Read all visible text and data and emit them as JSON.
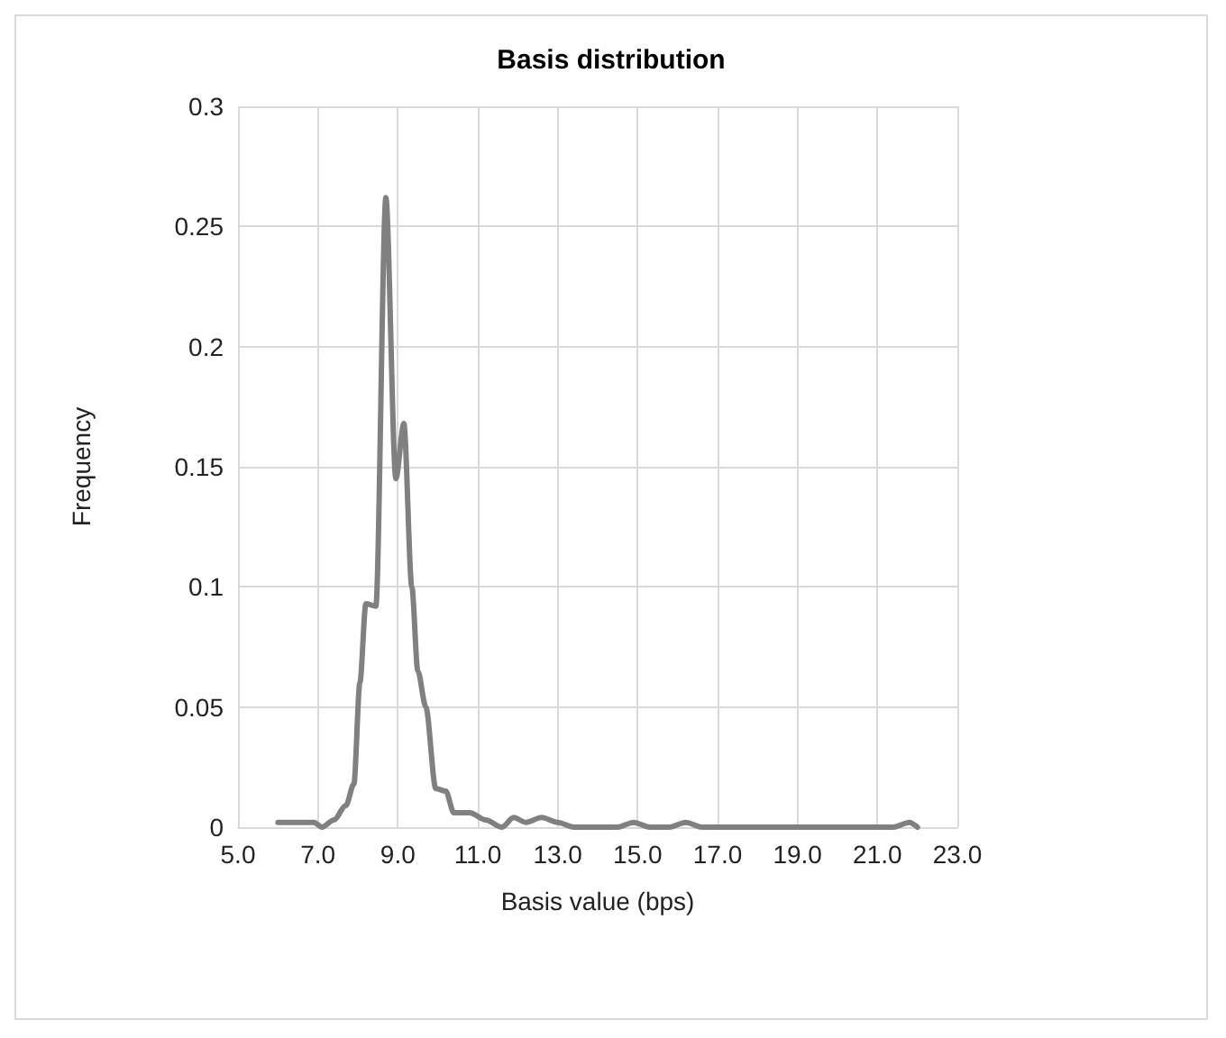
{
  "chart_data": {
    "type": "line",
    "title": "Basis distribution",
    "xlabel": "Basis value (bps)",
    "ylabel": "Frequency",
    "x": [
      6.0,
      6.5,
      6.9,
      7.1,
      7.4,
      7.7,
      7.9,
      8.05,
      8.2,
      8.45,
      8.7,
      8.95,
      9.15,
      9.35,
      9.5,
      9.7,
      9.95,
      10.2,
      10.4,
      10.8,
      11.2,
      11.6,
      11.9,
      12.2,
      12.6,
      13.0,
      13.4,
      14.5,
      14.9,
      15.3,
      15.8,
      16.2,
      16.6,
      19.0,
      21.4,
      21.8,
      22.0
    ],
    "series": [
      {
        "color": "#808080",
        "values": [
          0.002,
          0.002,
          0.002,
          0.0,
          0.003,
          0.009,
          0.018,
          0.06,
          0.093,
          0.092,
          0.262,
          0.145,
          0.168,
          0.1,
          0.065,
          0.05,
          0.016,
          0.015,
          0.006,
          0.006,
          0.003,
          0.0,
          0.004,
          0.002,
          0.004,
          0.002,
          0.0,
          0.0,
          0.002,
          0.0,
          0.0,
          0.002,
          0.0,
          0.0,
          0.0,
          0.002,
          0.0
        ]
      }
    ],
    "xlim": [
      5.0,
      23.0
    ],
    "xticks": [
      {
        "value": 5,
        "label": "5.0"
      },
      {
        "value": 7,
        "label": "7.0"
      },
      {
        "value": 9,
        "label": "9.0"
      },
      {
        "value": 11,
        "label": "11.0"
      },
      {
        "value": 13,
        "label": "13.0"
      },
      {
        "value": 15,
        "label": "15.0"
      },
      {
        "value": 17,
        "label": "17.0"
      },
      {
        "value": 19,
        "label": "19.0"
      },
      {
        "value": 21,
        "label": "21.0"
      },
      {
        "value": 23,
        "label": "23.0"
      }
    ],
    "ylim": [
      0,
      0.3
    ],
    "yticks": [
      0,
      0.05,
      0.1,
      0.15,
      0.2,
      0.25,
      0.3
    ],
    "grid": true,
    "marker": "none",
    "line_style": "solid"
  }
}
